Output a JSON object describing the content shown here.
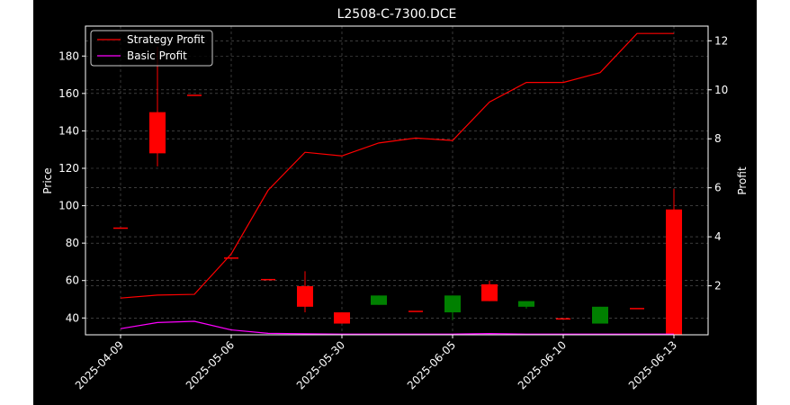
{
  "chart_data": {
    "type": "candlestick+line",
    "title": "L2508-C-7300.DCE",
    "ylabel_left": "Price",
    "ylabel_right": "Profit",
    "xlabel": "",
    "ylim_left": [
      31,
      196
    ],
    "ylim_right": [
      0.0,
      12.6
    ],
    "y_ticks_left": [
      40,
      60,
      80,
      100,
      120,
      140,
      160,
      180
    ],
    "y_ticks_right": [
      2,
      4,
      6,
      8,
      10,
      12
    ],
    "x_tick_labels": [
      "2025-04-09",
      "2025-05-06",
      "2025-05-30",
      "2025-06-05",
      "2025-06-10",
      "2025-06-13"
    ],
    "x_tick_index": [
      0,
      3,
      6,
      9,
      12,
      15
    ],
    "grid": true,
    "legend_placement": "top-left",
    "candles": [
      {
        "o": 88,
        "h": 88,
        "l": 88,
        "c": 88
      },
      {
        "o": 128,
        "h": 185,
        "l": 121,
        "c": 150
      },
      {
        "o": 159,
        "h": 159,
        "l": 159,
        "c": 159
      },
      {
        "o": 72,
        "h": 72,
        "l": 72,
        "c": 72
      },
      {
        "o": 60.5,
        "h": 60.5,
        "l": 60.5,
        "c": 60.5
      },
      {
        "o": 46,
        "h": 65,
        "l": 43,
        "c": 57
      },
      {
        "o": 37,
        "h": 43,
        "l": 37,
        "c": 43
      },
      {
        "o": 52,
        "h": 52,
        "l": 47,
        "c": 47
      },
      {
        "o": 43.5,
        "h": 43.5,
        "l": 43.5,
        "c": 43.5
      },
      {
        "o": 52,
        "h": 52,
        "l": 39,
        "c": 43
      },
      {
        "o": 49,
        "h": 60,
        "l": 49,
        "c": 58
      },
      {
        "o": 49,
        "h": 49,
        "l": 45,
        "c": 46
      },
      {
        "o": 39.5,
        "h": 39.5,
        "l": 39.5,
        "c": 39.5
      },
      {
        "o": 46,
        "h": 46,
        "l": 37,
        "c": 37
      },
      {
        "o": 45,
        "h": 45,
        "l": 45,
        "c": 45
      },
      {
        "o": 31,
        "h": 109,
        "l": 31,
        "c": 98
      }
    ],
    "series": [
      {
        "name": "Strategy Profit",
        "color": "#ff0000",
        "values": [
          1.5,
          1.62,
          1.65,
          3.3,
          5.9,
          7.45,
          7.3,
          7.83,
          8.03,
          7.93,
          9.5,
          10.3,
          10.3,
          10.7,
          12.3,
          12.3
        ]
      },
      {
        "name": "Basic Profit",
        "color": "#ff00ff",
        "values": [
          0.25,
          0.5,
          0.55,
          0.2,
          0.06,
          0.04,
          0.03,
          0.03,
          0.03,
          0.03,
          0.05,
          0.03,
          0.03,
          0.03,
          0.03,
          0.03
        ]
      }
    ],
    "colors": {
      "up": "#ff0000",
      "down": "#008000",
      "axis": "#ffffff",
      "grid": "#888888",
      "background": "#000000"
    }
  }
}
